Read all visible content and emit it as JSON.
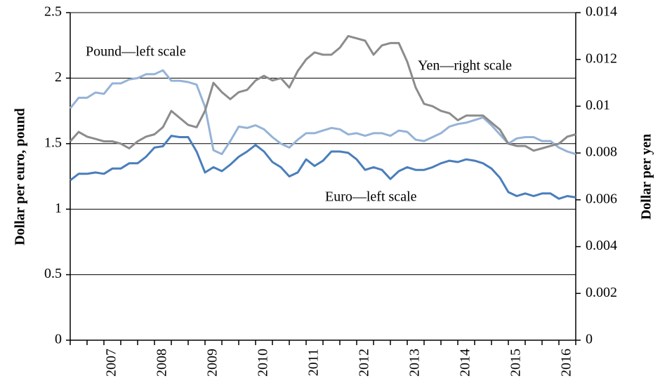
{
  "chart_data": {
    "type": "line",
    "y_label": "Dollar per euro, pound",
    "y2_label": "Dollar per yen",
    "annotations": [
      {
        "text": "Pound—left scale"
      },
      {
        "text": "Yen—right scale"
      },
      {
        "text": "Euro—left scale"
      }
    ],
    "categories": [
      null,
      null,
      null,
      null,
      null,
      "2007",
      null,
      null,
      null,
      null,
      null,
      "2008",
      null,
      null,
      null,
      null,
      null,
      "2009",
      null,
      null,
      null,
      null,
      null,
      "2010",
      null,
      null,
      null,
      null,
      null,
      "2011",
      null,
      null,
      null,
      null,
      null,
      "2012",
      null,
      null,
      null,
      null,
      null,
      "2013",
      null,
      null,
      null,
      null,
      null,
      "2014",
      null,
      null,
      null,
      null,
      null,
      "2015",
      null,
      null,
      null,
      null,
      null,
      "2016",
      null
    ],
    "series": [
      {
        "name": "Euro",
        "color": "#4a7ebb",
        "values": [
          1.22,
          1.27,
          1.27,
          1.28,
          1.27,
          1.31,
          1.31,
          1.35,
          1.35,
          1.4,
          1.47,
          1.48,
          1.56,
          1.55,
          1.55,
          1.44,
          1.28,
          1.32,
          1.29,
          1.34,
          1.4,
          1.44,
          1.49,
          1.44,
          1.36,
          1.32,
          1.25,
          1.28,
          1.38,
          1.33,
          1.37,
          1.44,
          1.44,
          1.43,
          1.38,
          1.3,
          1.32,
          1.3,
          1.23,
          1.29,
          1.32,
          1.3,
          1.3,
          1.32,
          1.35,
          1.37,
          1.36,
          1.38,
          1.37,
          1.35,
          1.31,
          1.24,
          1.13,
          1.1,
          1.12,
          1.1,
          1.12,
          1.12,
          1.08,
          1.1,
          1.09
        ]
      },
      {
        "name": "Pound",
        "color": "#95b3d7",
        "values": [
          1.77,
          1.85,
          1.85,
          1.89,
          1.88,
          1.96,
          1.96,
          1.99,
          2.0,
          2.03,
          2.03,
          2.06,
          1.98,
          1.98,
          1.97,
          1.95,
          1.78,
          1.45,
          1.42,
          1.52,
          1.63,
          1.62,
          1.64,
          1.61,
          1.55,
          1.5,
          1.47,
          1.53,
          1.58,
          1.58,
          1.6,
          1.62,
          1.61,
          1.57,
          1.58,
          1.56,
          1.58,
          1.58,
          1.56,
          1.6,
          1.59,
          1.53,
          1.52,
          1.55,
          1.58,
          1.63,
          1.65,
          1.66,
          1.68,
          1.7,
          1.64,
          1.57,
          1.5,
          1.54,
          1.55,
          1.55,
          1.52,
          1.52,
          1.47,
          1.44,
          1.42
        ]
      },
      {
        "name": "Yen",
        "color": "#8c8c8c",
        "axis": "y2",
        "values": [
          0.0085,
          0.0089,
          0.0087,
          0.0086,
          0.0085,
          0.0085,
          0.0084,
          0.0082,
          0.0085,
          0.0087,
          0.0088,
          0.0091,
          0.0098,
          0.0095,
          0.0092,
          0.0091,
          0.0098,
          0.011,
          0.0106,
          0.0103,
          0.0106,
          0.0107,
          0.0111,
          0.0113,
          0.0111,
          0.0112,
          0.0108,
          0.0115,
          0.012,
          0.0123,
          0.0122,
          0.0122,
          0.0125,
          0.013,
          0.0129,
          0.0128,
          0.0122,
          0.0126,
          0.0127,
          0.0127,
          0.0119,
          0.0108,
          0.0101,
          0.01,
          0.0098,
          0.0097,
          0.0094,
          0.0096,
          0.0096,
          0.0096,
          0.0093,
          0.009,
          0.0084,
          0.0083,
          0.0083,
          0.0081,
          0.0082,
          0.0083,
          0.0084,
          0.0087,
          0.0088
        ]
      }
    ],
    "ylim": [
      0,
      2.5
    ],
    "yticks": [
      0,
      0.5,
      1,
      1.5,
      2,
      2.5
    ],
    "y2lim": [
      0,
      0.014
    ],
    "y2ticks": [
      0,
      0.002,
      0.004,
      0.006,
      0.008,
      0.01,
      0.012,
      0.014
    ],
    "grid": true
  }
}
